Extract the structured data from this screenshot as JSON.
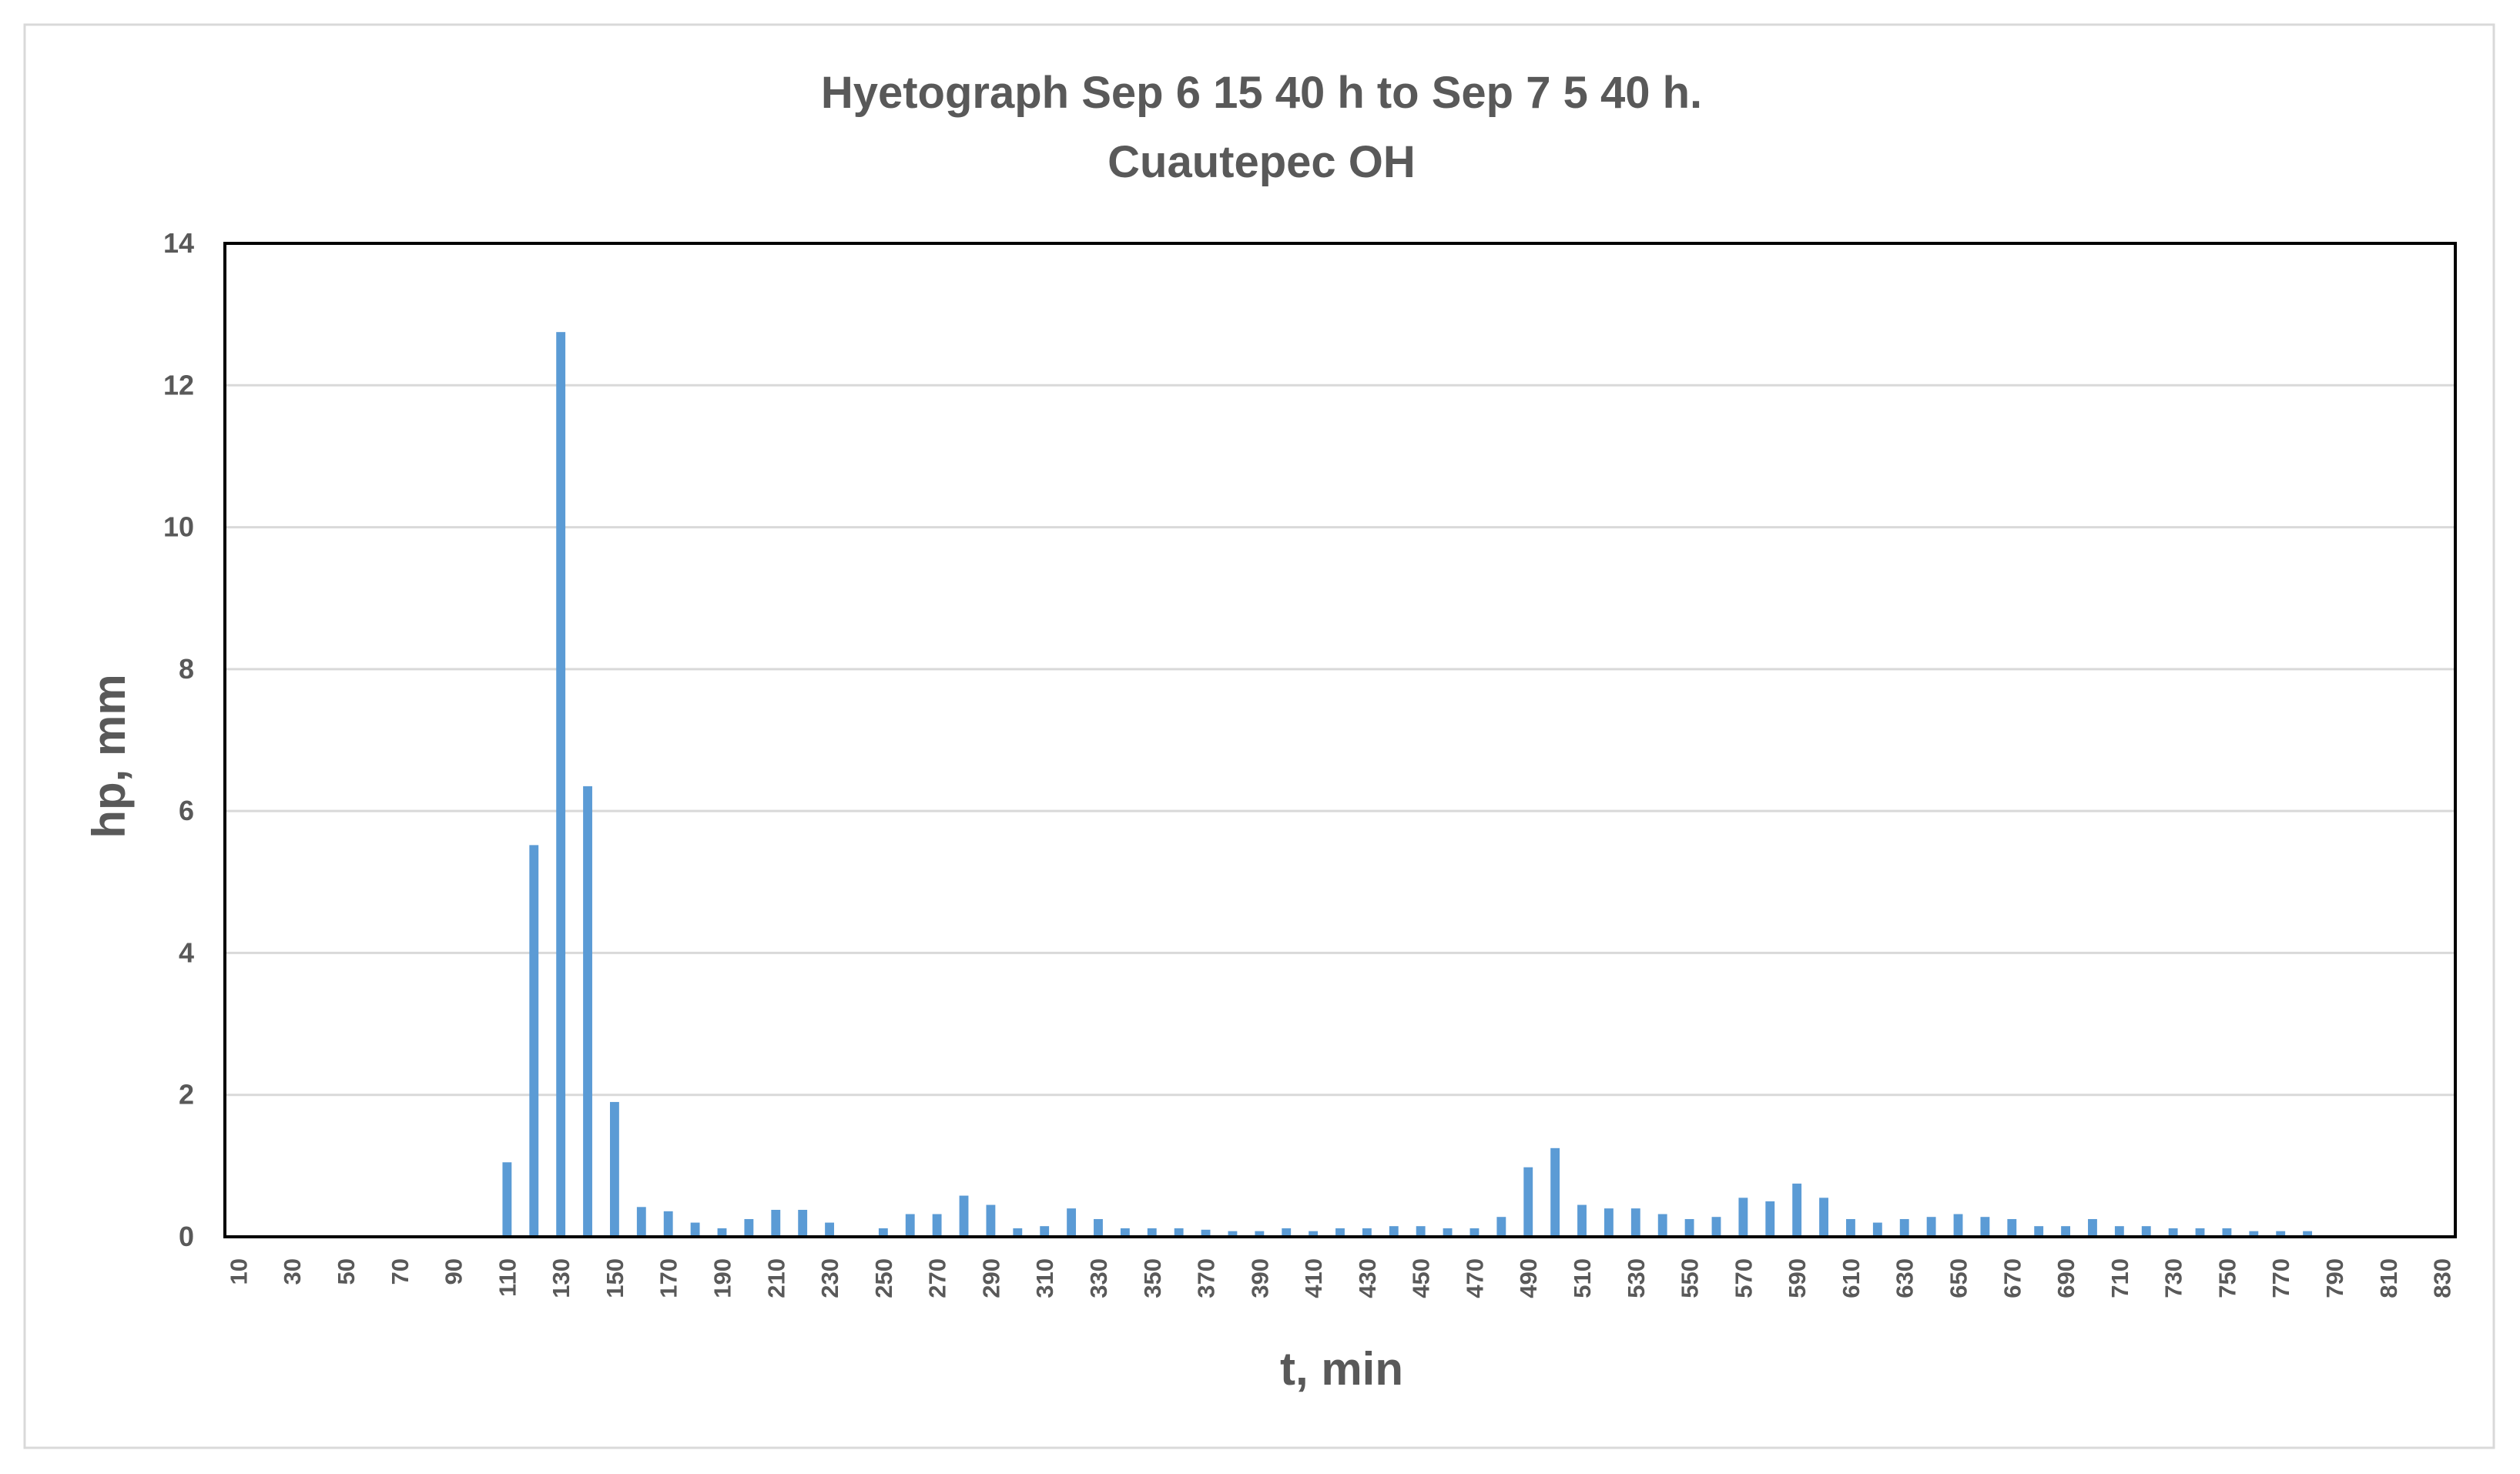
{
  "chart_data": {
    "type": "bar",
    "title": "Hyetograph  Sep 6 15 40 h to  Sep 7 5 40 h.",
    "subtitle": "Cuautepec OH",
    "xlabel": "t, min",
    "ylabel": "hp, mm",
    "ylim": [
      0,
      14
    ],
    "yticks": [
      "0",
      "2",
      "4",
      "6",
      "8",
      "10",
      "12",
      "14"
    ],
    "grid": true,
    "bar_color": "#5b9bd5",
    "categories": [
      10,
      20,
      30,
      40,
      50,
      60,
      70,
      80,
      90,
      100,
      110,
      120,
      130,
      140,
      150,
      160,
      170,
      180,
      190,
      200,
      210,
      220,
      230,
      240,
      250,
      260,
      270,
      280,
      290,
      300,
      310,
      320,
      330,
      340,
      350,
      360,
      370,
      380,
      390,
      400,
      410,
      420,
      430,
      440,
      450,
      460,
      470,
      480,
      490,
      500,
      510,
      520,
      530,
      540,
      550,
      560,
      570,
      580,
      590,
      600,
      610,
      620,
      630,
      640,
      650,
      660,
      670,
      680,
      690,
      700,
      710,
      720,
      730,
      740,
      750,
      760,
      770,
      780,
      790,
      800,
      810,
      820,
      830
    ],
    "xtick_labels": [
      "10",
      "30",
      "50",
      "70",
      "90",
      "110",
      "130",
      "150",
      "170",
      "190",
      "210",
      "230",
      "250",
      "270",
      "290",
      "310",
      "330",
      "350",
      "370",
      "390",
      "410",
      "430",
      "450",
      "470",
      "490",
      "510",
      "530",
      "550",
      "570",
      "590",
      "610",
      "630",
      "650",
      "670",
      "690",
      "710",
      "730",
      "750",
      "770",
      "790",
      "810",
      "830"
    ],
    "values": [
      0,
      0,
      0,
      0,
      0,
      0,
      0,
      0,
      0,
      0,
      1.05,
      5.52,
      12.75,
      6.35,
      1.9,
      0.42,
      0.36,
      0.2,
      0.12,
      0.25,
      0.38,
      0.38,
      0.2,
      0,
      0.12,
      0.32,
      0.32,
      0.58,
      0.45,
      0.12,
      0.15,
      0.4,
      0.25,
      0.12,
      0.12,
      0.12,
      0.1,
      0.08,
      0.08,
      0.12,
      0.08,
      0.12,
      0.12,
      0.15,
      0.15,
      0.12,
      0.12,
      0.28,
      0.98,
      1.25,
      0.45,
      0.4,
      0.4,
      0.32,
      0.25,
      0.28,
      0.55,
      0.5,
      0.75,
      0.55,
      0.25,
      0.2,
      0.25,
      0.28,
      0.32,
      0.28,
      0.25,
      0.15,
      0.15,
      0.25,
      0.15,
      0.15,
      0.12,
      0.12,
      0.12,
      0.08,
      0.08,
      0.08,
      0,
      0,
      0,
      0,
      0
    ]
  }
}
